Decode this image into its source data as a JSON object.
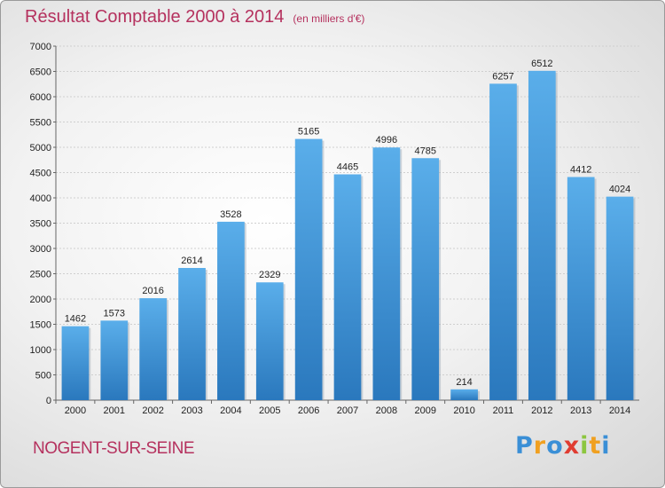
{
  "chart_data": {
    "type": "bar",
    "title": "Résultat Comptable 2000 à 2014",
    "subtitle": "(en milliers d'€)",
    "categories": [
      "2000",
      "2001",
      "2002",
      "2003",
      "2004",
      "2005",
      "2006",
      "2007",
      "2008",
      "2009",
      "2010",
      "2011",
      "2012",
      "2013",
      "2014"
    ],
    "values": [
      1462,
      1573,
      2016,
      2614,
      3528,
      2329,
      5165,
      4465,
      4996,
      4785,
      214,
      6257,
      6512,
      4412,
      4024
    ],
    "ylim": [
      0,
      7000
    ],
    "yticks": [
      0,
      500,
      1000,
      1500,
      2000,
      2500,
      3000,
      3500,
      4000,
      4500,
      5000,
      5500,
      6000,
      6500,
      7000
    ],
    "grid": true,
    "xlabel": "",
    "ylabel": "",
    "bar_color": "#3d8fd1"
  },
  "location": "NOGENT-SUR-SEINE",
  "brand": {
    "name": "Proxiti",
    "letters": [
      "P",
      "r",
      "o",
      "x",
      "i",
      "t",
      "i"
    ],
    "letter_colors": [
      "#3a8fd6",
      "#f0a020",
      "#3a8fd6",
      "#e03c31",
      "#8cc63f",
      "#f0a020",
      "#3a8fd6"
    ]
  }
}
